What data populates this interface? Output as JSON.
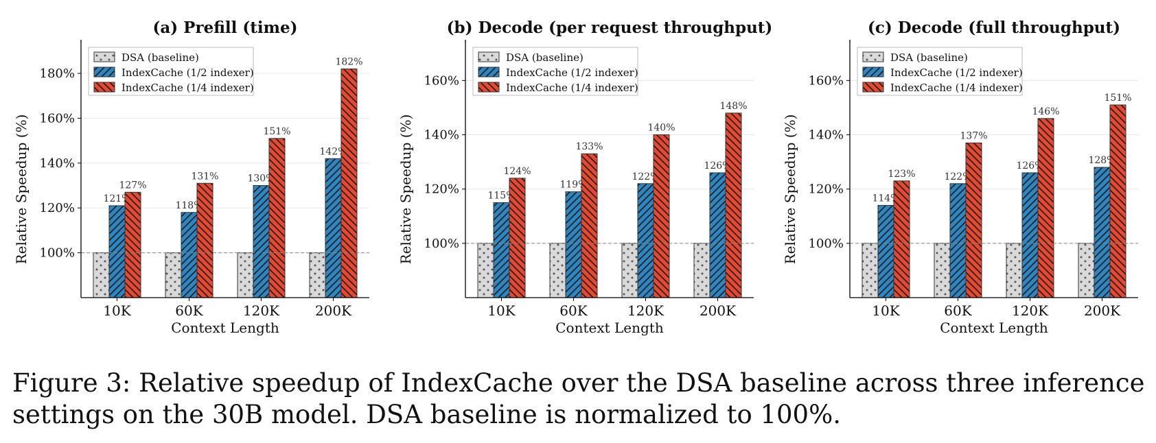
{
  "caption": "Figure 3: Relative speedup of IndexCache over the DSA baseline across three inference settings on the 30B model. DSA baseline is normalized to 100%.",
  "colors": {
    "baseline": "#d9d9d9",
    "half": "#2e86c1",
    "quarter": "#e5492f"
  },
  "chart_data": [
    {
      "type": "bar",
      "title": "(a) Prefill (time)",
      "xlabel": "Context Length",
      "ylabel": "Relative Speedup (%)",
      "categories": [
        "10K",
        "60K",
        "120K",
        "200K"
      ],
      "ylim": [
        80,
        195
      ],
      "yticks": [
        100,
        120,
        140,
        160,
        180
      ],
      "ytick_labels": [
        "100%",
        "120%",
        "140%",
        "160%",
        "180%"
      ],
      "reference_line": 100,
      "legend_position": "upper-left",
      "series": [
        {
          "name": "DSA (baseline)",
          "values": [
            100,
            100,
            100,
            100
          ],
          "labels": [
            "",
            "",
            "",
            ""
          ]
        },
        {
          "name": "IndexCache (1/2 indexer)",
          "values": [
            121,
            118,
            130,
            142
          ],
          "labels": [
            "121%",
            "118%",
            "130%",
            "142%"
          ]
        },
        {
          "name": "IndexCache (1/4 indexer)",
          "values": [
            127,
            131,
            151,
            182
          ],
          "labels": [
            "127%",
            "131%",
            "151%",
            "182%"
          ]
        }
      ]
    },
    {
      "type": "bar",
      "title": "(b) Decode (per request throughput)",
      "xlabel": "Context Length",
      "ylabel": "Relative Speedup (%)",
      "categories": [
        "10K",
        "60K",
        "120K",
        "200K"
      ],
      "ylim": [
        80,
        175
      ],
      "yticks": [
        100,
        120,
        140,
        160
      ],
      "ytick_labels": [
        "100%",
        "120%",
        "140%",
        "160%"
      ],
      "reference_line": 100,
      "legend_position": "upper-left",
      "series": [
        {
          "name": "DSA (baseline)",
          "values": [
            100,
            100,
            100,
            100
          ],
          "labels": [
            "",
            "",
            "",
            ""
          ]
        },
        {
          "name": "IndexCache (1/2 indexer)",
          "values": [
            115,
            119,
            122,
            126
          ],
          "labels": [
            "115%",
            "119%",
            "122%",
            "126%"
          ]
        },
        {
          "name": "IndexCache (1/4 indexer)",
          "values": [
            124,
            133,
            140,
            148
          ],
          "labels": [
            "124%",
            "133%",
            "140%",
            "148%"
          ]
        }
      ]
    },
    {
      "type": "bar",
      "title": "(c) Decode (full throughput)",
      "xlabel": "Context Length",
      "ylabel": "Relative Speedup (%)",
      "categories": [
        "10K",
        "60K",
        "120K",
        "200K"
      ],
      "ylim": [
        80,
        175
      ],
      "yticks": [
        100,
        120,
        140,
        160
      ],
      "ytick_labels": [
        "100%",
        "120%",
        "140%",
        "160%"
      ],
      "reference_line": 100,
      "legend_position": "upper-left",
      "series": [
        {
          "name": "DSA (baseline)",
          "values": [
            100,
            100,
            100,
            100
          ],
          "labels": [
            "",
            "",
            "",
            ""
          ]
        },
        {
          "name": "IndexCache (1/2 indexer)",
          "values": [
            114,
            122,
            126,
            128
          ],
          "labels": [
            "114%",
            "122%",
            "126%",
            "128%"
          ]
        },
        {
          "name": "IndexCache (1/4 indexer)",
          "values": [
            123,
            137,
            146,
            151
          ],
          "labels": [
            "123%",
            "137%",
            "146%",
            "151%"
          ]
        }
      ]
    }
  ]
}
